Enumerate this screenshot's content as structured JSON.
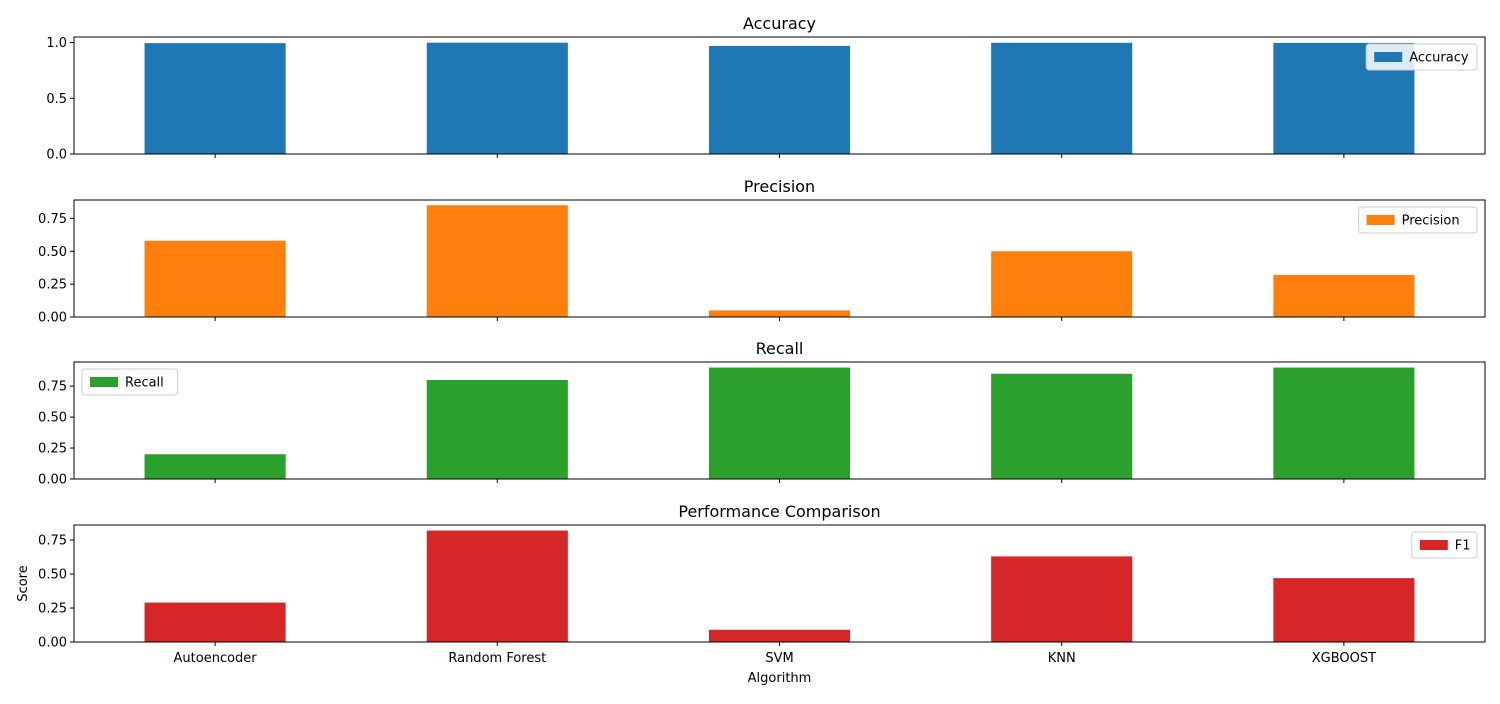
{
  "chart_data": [
    {
      "type": "bar",
      "title": "Accuracy",
      "categories": [
        "Autoencoder",
        "Random Forest",
        "SVM",
        "KNN",
        "XGBOOST"
      ],
      "series": [
        {
          "name": "Accuracy",
          "color": "#1f77b4",
          "values": [
            0.995,
            0.999,
            0.97,
            0.998,
            0.997
          ]
        }
      ],
      "ylim": [
        0,
        1.05
      ],
      "yticks": [
        0.0,
        0.5,
        1.0
      ],
      "ytick_labels": [
        "0.0",
        "0.5",
        "1.0"
      ],
      "legend": "top-right",
      "xlabel": "",
      "ylabel": ""
    },
    {
      "type": "bar",
      "title": "Precision",
      "categories": [
        "Autoencoder",
        "Random Forest",
        "SVM",
        "KNN",
        "XGBOOST"
      ],
      "series": [
        {
          "name": "Precision",
          "color": "#ff7f0e",
          "values": [
            0.58,
            0.85,
            0.05,
            0.5,
            0.32
          ]
        }
      ],
      "ylim": [
        0,
        0.89
      ],
      "yticks": [
        0.0,
        0.25,
        0.5,
        0.75
      ],
      "ytick_labels": [
        "0.00",
        "0.25",
        "0.50",
        "0.75"
      ],
      "legend": "top-right",
      "xlabel": "",
      "ylabel": ""
    },
    {
      "type": "bar",
      "title": "Recall",
      "categories": [
        "Autoencoder",
        "Random Forest",
        "SVM",
        "KNN",
        "XGBOOST"
      ],
      "series": [
        {
          "name": "Recall",
          "color": "#2ca02c",
          "values": [
            0.2,
            0.8,
            0.9,
            0.85,
            0.9
          ]
        }
      ],
      "ylim": [
        0,
        0.945
      ],
      "yticks": [
        0.0,
        0.25,
        0.5,
        0.75
      ],
      "ytick_labels": [
        "0.00",
        "0.25",
        "0.50",
        "0.75"
      ],
      "legend": "top-left",
      "xlabel": "",
      "ylabel": ""
    },
    {
      "type": "bar",
      "title": "Performance Comparison",
      "categories": [
        "Autoencoder",
        "Random Forest",
        "SVM",
        "KNN",
        "XGBOOST"
      ],
      "series": [
        {
          "name": "F1",
          "color": "#d62728",
          "values": [
            0.29,
            0.82,
            0.09,
            0.63,
            0.47
          ]
        }
      ],
      "ylim": [
        0,
        0.861
      ],
      "yticks": [
        0.0,
        0.25,
        0.5,
        0.75
      ],
      "ytick_labels": [
        "0.00",
        "0.25",
        "0.50",
        "0.75"
      ],
      "legend": "top-right",
      "xlabel": "Algorithm",
      "ylabel": "Score"
    }
  ]
}
